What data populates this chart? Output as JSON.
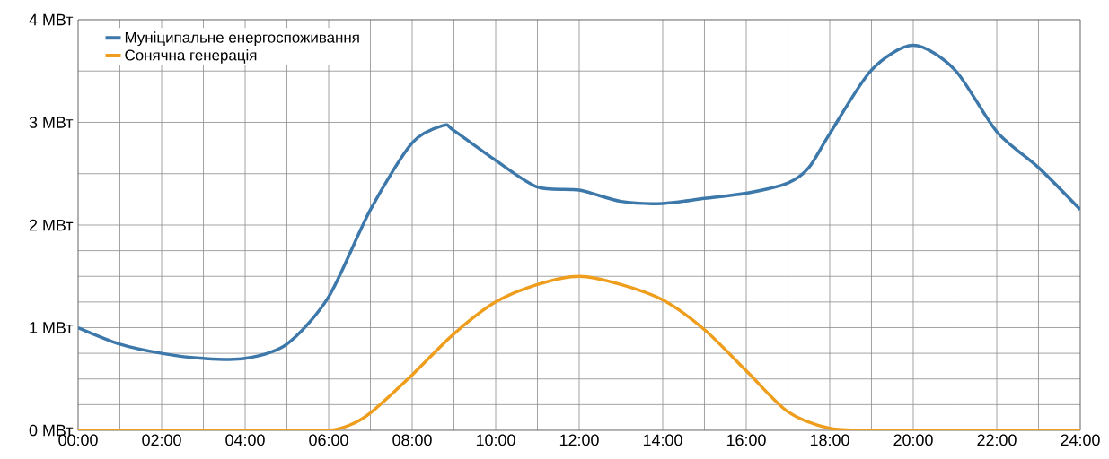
{
  "chart_data": {
    "type": "line",
    "x": [
      0,
      1,
      2,
      3,
      4,
      5,
      6,
      7,
      8,
      8.75,
      9,
      10,
      11,
      12,
      13,
      14,
      15,
      16,
      17,
      17.5,
      18,
      19,
      20,
      21,
      22,
      23,
      24
    ],
    "series": [
      {
        "name": "Муніципальне енергоспоживання",
        "color": "#3d78ab",
        "values": [
          1.0,
          0.84,
          0.75,
          0.7,
          0.7,
          0.84,
          1.3,
          2.15,
          2.8,
          2.97,
          2.92,
          2.63,
          2.37,
          2.34,
          2.23,
          2.21,
          2.26,
          2.31,
          2.41,
          2.56,
          2.89,
          3.51,
          3.75,
          3.51,
          2.91,
          2.56,
          2.15
        ]
      },
      {
        "name": "Сонячна генерація",
        "color": "#ee9d1c",
        "x": [
          0,
          1,
          2,
          3,
          4,
          5,
          6,
          6.5,
          7,
          8,
          9,
          10,
          11,
          12,
          13,
          14,
          15,
          16,
          17,
          18,
          19,
          20,
          21,
          22,
          23,
          24
        ],
        "values": [
          0,
          0,
          0,
          0,
          0,
          0,
          0,
          0.05,
          0.17,
          0.54,
          0.94,
          1.25,
          1.42,
          1.5,
          1.42,
          1.27,
          0.98,
          0.58,
          0.18,
          0.02,
          0,
          0,
          0,
          0,
          0,
          0
        ]
      }
    ],
    "xlim": [
      0,
      24
    ],
    "ylim": [
      0,
      4
    ],
    "xticks": [
      {
        "value": 0,
        "label": "00:00"
      },
      {
        "value": 1,
        "label": null
      },
      {
        "value": 2,
        "label": "02:00"
      },
      {
        "value": 3,
        "label": null
      },
      {
        "value": 4,
        "label": "04:00"
      },
      {
        "value": 5,
        "label": null
      },
      {
        "value": 6,
        "label": "06:00"
      },
      {
        "value": 7,
        "label": null
      },
      {
        "value": 8,
        "label": "08:00"
      },
      {
        "value": 9,
        "label": null
      },
      {
        "value": 10,
        "label": "10:00"
      },
      {
        "value": 11,
        "label": null
      },
      {
        "value": 12,
        "label": "12:00"
      },
      {
        "value": 13,
        "label": null
      },
      {
        "value": 14,
        "label": "14:00"
      },
      {
        "value": 15,
        "label": null
      },
      {
        "value": 16,
        "label": "16:00"
      },
      {
        "value": 17,
        "label": null
      },
      {
        "value": 18,
        "label": "18:00"
      },
      {
        "value": 19,
        "label": null
      },
      {
        "value": 20,
        "label": "20:00"
      },
      {
        "value": 21,
        "label": null
      },
      {
        "value": 22,
        "label": "22:00"
      },
      {
        "value": 23,
        "label": null
      },
      {
        "value": 24,
        "label": "24:00"
      }
    ],
    "yticks": [
      {
        "value": 0,
        "label": "0 МВт"
      },
      {
        "value": 0.25,
        "label": null
      },
      {
        "value": 0.5,
        "label": null
      },
      {
        "value": 0.75,
        "label": null
      },
      {
        "value": 1,
        "label": "1 МВт"
      },
      {
        "value": 1.25,
        "label": null
      },
      {
        "value": 1.5,
        "label": null
      },
      {
        "value": 1.75,
        "label": null
      },
      {
        "value": 2,
        "label": "2 МВт"
      },
      {
        "value": 2.5,
        "label": null
      },
      {
        "value": 3,
        "label": "3 МВт"
      },
      {
        "value": 3.5,
        "label": null
      },
      {
        "value": 4,
        "label": "4 МВт"
      }
    ],
    "grid": true,
    "legend": "top left",
    "marker": "none",
    "line_style": "solid"
  }
}
